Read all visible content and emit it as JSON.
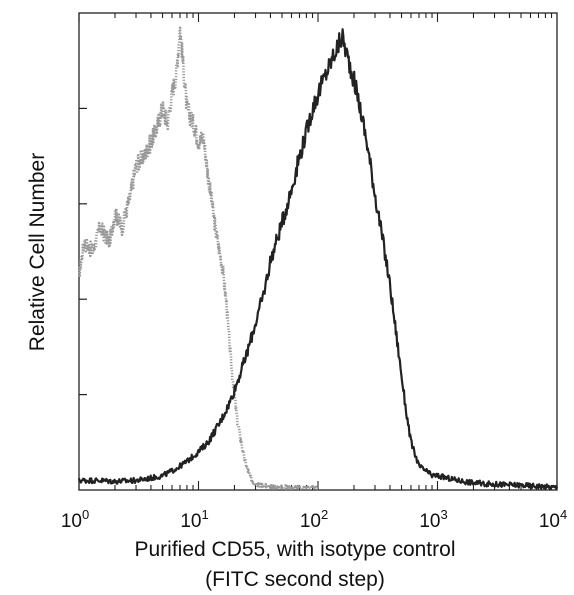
{
  "chart_data": {
    "type": "line",
    "title": "",
    "xlabel_lines": [
      "Purified CD55, with isotype control",
      "(FITC second step)"
    ],
    "ylabel": "Relative Cell Number",
    "x_scale": "log",
    "xlim": [
      1,
      10000
    ],
    "ylim": [
      0,
      1
    ],
    "grid": false,
    "legend": "none",
    "x_ticks": [
      {
        "value": 1,
        "base": "10",
        "exp": "0"
      },
      {
        "value": 10,
        "base": "10",
        "exp": "1"
      },
      {
        "value": 100,
        "base": "10",
        "exp": "2"
      },
      {
        "value": 1000,
        "base": "10",
        "exp": "3"
      },
      {
        "value": 10000,
        "base": "10",
        "exp": "4"
      }
    ],
    "y_ticks": [
      0.2,
      0.4,
      0.6,
      0.8
    ],
    "series": [
      {
        "color": "#999999",
        "style": "dotted",
        "x": [
          1,
          1.1,
          1.3,
          1.5,
          1.8,
          2.0,
          2.3,
          2.7,
          3.0,
          3.5,
          4.0,
          4.5,
          5.0,
          5.5,
          6.0,
          6.5,
          7.0,
          7.5,
          8.0,
          9.0,
          10,
          11,
          12,
          13,
          14,
          15,
          16,
          17,
          18,
          19,
          20,
          21,
          22,
          24,
          26,
          28,
          30,
          35,
          40,
          50,
          70,
          100
        ],
        "y": [
          0.45,
          0.52,
          0.5,
          0.55,
          0.52,
          0.58,
          0.55,
          0.62,
          0.68,
          0.7,
          0.73,
          0.76,
          0.8,
          0.77,
          0.83,
          0.87,
          0.97,
          0.88,
          0.8,
          0.77,
          0.73,
          0.74,
          0.66,
          0.6,
          0.54,
          0.5,
          0.46,
          0.4,
          0.32,
          0.25,
          0.2,
          0.15,
          0.12,
          0.07,
          0.04,
          0.02,
          0.015,
          0.01,
          0.005,
          0.005,
          0.003,
          0.002
        ]
      },
      {
        "color": "#222222",
        "style": "solid",
        "x": [
          1,
          1.5,
          2,
          3,
          4,
          5,
          6,
          7,
          8,
          10,
          12,
          15,
          18,
          20,
          25,
          30,
          35,
          40,
          50,
          60,
          70,
          80,
          90,
          100,
          120,
          140,
          160,
          180,
          200,
          230,
          260,
          300,
          350,
          400,
          450,
          500,
          550,
          600,
          700,
          800,
          900,
          1000,
          1200,
          1500,
          2000,
          3000,
          5000,
          7000,
          10000
        ],
        "y": [
          0.02,
          0.02,
          0.018,
          0.02,
          0.025,
          0.03,
          0.04,
          0.05,
          0.06,
          0.08,
          0.1,
          0.14,
          0.18,
          0.21,
          0.28,
          0.35,
          0.41,
          0.48,
          0.56,
          0.63,
          0.7,
          0.75,
          0.8,
          0.83,
          0.88,
          0.92,
          0.95,
          0.9,
          0.86,
          0.79,
          0.72,
          0.62,
          0.52,
          0.43,
          0.33,
          0.24,
          0.16,
          0.1,
          0.05,
          0.04,
          0.03,
          0.03,
          0.025,
          0.02,
          0.015,
          0.012,
          0.01,
          0.008,
          0.005
        ]
      }
    ]
  }
}
